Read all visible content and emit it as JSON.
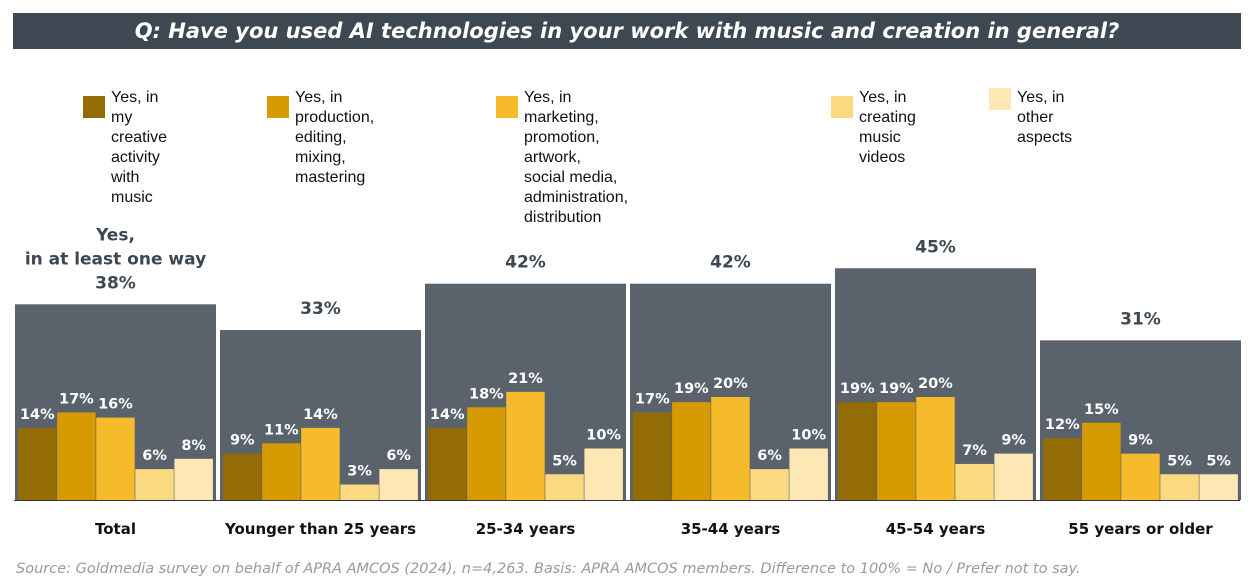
{
  "title": "Q: Have you used AI technologies in your work with music and creation in general?",
  "source": "Source: Goldmedia survey on behalf of APRA AMCOS (2024), n=4,263. Basis: APRA AMCOS members. Difference to 100% = No / Prefer not to say.",
  "colors": {
    "title_bg": "#3d4852",
    "group_bg": "#5a636b",
    "series": [
      "#946c05",
      "#d69a03",
      "#f6bb2b",
      "#fbd981",
      "#fde8b5"
    ]
  },
  "chart_data": {
    "type": "bar",
    "unit": "%",
    "categories": [
      "Total",
      "Younger than 25 years",
      "25-34 years",
      "35-44 years",
      "45-54 years",
      "55 years or older"
    ],
    "totals": [
      38,
      33,
      42,
      42,
      45,
      31
    ],
    "total_labels": [
      "Yes,\nin at least one way\n38%",
      "33%",
      "42%",
      "42%",
      "45%",
      "31%"
    ],
    "series": [
      {
        "name": "Yes, in my creative\nactivity with music",
        "values": [
          14,
          9,
          14,
          17,
          19,
          12
        ]
      },
      {
        "name": "Yes, in production,\nediting, mixing, mastering",
        "values": [
          17,
          11,
          18,
          19,
          19,
          15
        ]
      },
      {
        "name": "Yes, in marketing, promotion, artwork,\nsocial media, administration, distribution",
        "values": [
          16,
          14,
          21,
          20,
          20,
          9
        ]
      },
      {
        "name": "Yes, in creating\nmusic videos",
        "values": [
          6,
          3,
          5,
          6,
          7,
          5
        ]
      },
      {
        "name": "Yes, in other aspects",
        "values": [
          8,
          6,
          10,
          10,
          9,
          5
        ]
      }
    ],
    "ylim": [
      0,
      45
    ]
  }
}
